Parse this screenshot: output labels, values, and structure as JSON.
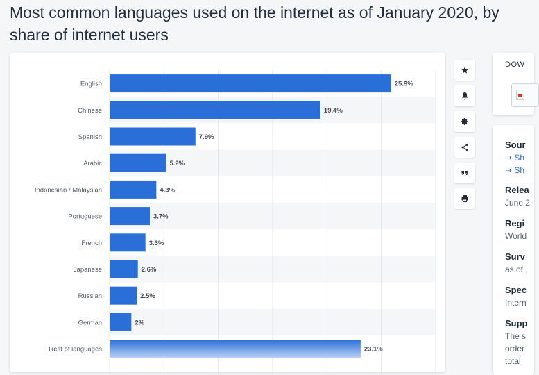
{
  "page": {
    "title": "Most common languages used on the internet as of January 2020, by share of internet users"
  },
  "chart_data": {
    "type": "bar",
    "orientation": "horizontal",
    "categories": [
      "English",
      "Chinese",
      "Spanish",
      "Arabic",
      "Indonesian / Malaysian",
      "Portuguese",
      "French",
      "Japanese",
      "Russian",
      "German",
      "Rest of languages"
    ],
    "values": [
      25.9,
      19.4,
      7.9,
      5.2,
      4.3,
      3.7,
      3.3,
      2.6,
      2.5,
      2,
      23.1
    ],
    "labels": [
      "25.9%",
      "19.4%",
      "7.9%",
      "5.2%",
      "4.3%",
      "3.7%",
      "3.3%",
      "2.6%",
      "2.5%",
      "2%",
      "23.1%"
    ],
    "xlim": [
      0,
      30
    ],
    "grid": true,
    "colors": {
      "bar": "#2a6ed8",
      "stripe": "#f5f6f8",
      "grid": "#e2e6ea",
      "label": "#444a52"
    }
  },
  "toolbar": {
    "icons": [
      "star-icon",
      "bell-icon",
      "gear-icon",
      "share-icon",
      "quote-icon",
      "print-icon"
    ]
  },
  "side": {
    "download_heading": "DOW",
    "source": {
      "heading": "Sour",
      "links": [
        "➝ Sh",
        "➝ Sh"
      ]
    },
    "release": {
      "heading": "Relea",
      "value": "June 2"
    },
    "region": {
      "heading": "Regi",
      "value": "World"
    },
    "survey": {
      "heading": "Surv",
      "value": "as of ,"
    },
    "special": {
      "heading": "Spec",
      "value": "Intern"
    },
    "supplementary": {
      "heading": "Supp",
      "lines": [
        "The s",
        "order",
        "total"
      ]
    }
  }
}
